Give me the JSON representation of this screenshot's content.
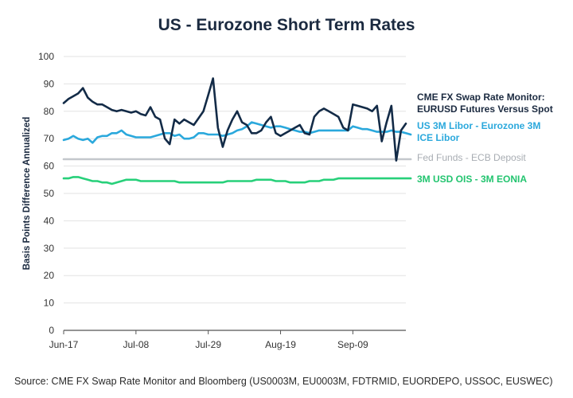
{
  "title": "US - Eurozone Short Term Rates",
  "source": "Source: CME FX Swap Rate Monitor and Bloomberg (US0003M, EU0003M, FDTRMID, EUORDEPO, USSOC, EUSWEC)",
  "chart_data": {
    "type": "line",
    "title": "US - Eurozone Short Term Rates",
    "xlabel": "",
    "ylabel": "Basis Points Difference Annualized",
    "ylim": [
      0,
      100
    ],
    "yticks": [
      0,
      10,
      20,
      30,
      40,
      50,
      60,
      70,
      80,
      90,
      100
    ],
    "xtick_labels": [
      "Jun-17",
      "Jul-08",
      "Jul-29",
      "Aug-19",
      "Sep-09"
    ],
    "xtick_index": [
      0,
      15,
      30,
      45,
      60
    ],
    "grid": "horizontal",
    "legend_position": "right",
    "series": [
      {
        "name": "CME FX Swap Rate Monitor: EURUSD Futures Versus Spot",
        "color": "#132b47",
        "values": [
          83,
          84.5,
          85.5,
          86.5,
          88.5,
          85,
          83.5,
          82.5,
          82.5,
          81.5,
          80.5,
          80,
          80.5,
          80,
          79.5,
          80,
          79,
          78.5,
          81.5,
          78,
          77,
          70,
          68,
          77,
          75.5,
          77,
          76,
          75,
          77.5,
          80,
          86,
          92,
          74,
          67,
          73,
          77,
          80,
          76,
          75,
          72,
          72,
          73,
          76,
          78,
          72,
          71,
          72,
          73,
          74,
          75,
          72,
          71.5,
          78,
          80,
          81,
          80,
          79,
          78,
          74,
          73,
          82.5,
          82,
          81.5,
          81,
          80,
          82,
          69,
          76,
          82,
          62,
          73,
          75.5
        ]
      },
      {
        "name": "US 3M Libor - Eurozone 3M ICE Libor",
        "color": "#2aa8dc",
        "values": [
          69.5,
          70,
          71,
          70,
          69.5,
          70,
          68.5,
          70.5,
          71,
          71,
          72,
          72,
          73,
          71.5,
          71,
          70.5,
          70.5,
          70.5,
          70.5,
          71,
          71.5,
          72,
          72,
          71,
          71.5,
          70,
          70,
          70.5,
          72,
          72,
          71.5,
          71.5,
          71.5,
          71,
          71.5,
          72,
          73,
          73.5,
          74.5,
          76,
          75.5,
          75,
          74.5,
          74,
          74.5,
          74.5,
          74,
          73.5,
          73,
          72.5,
          72.5,
          72,
          72.5,
          73,
          73,
          73,
          73,
          73,
          73,
          73,
          74.5,
          74,
          73.5,
          73.5,
          73,
          72.5,
          72.5,
          72.5,
          73,
          72.5,
          72.5,
          72,
          71.5
        ]
      },
      {
        "name": "Fed Funds - ECB Deposit",
        "color": "#c3c7cc",
        "values": [
          62.5,
          62.5,
          62.5,
          62.5,
          62.5,
          62.5,
          62.5,
          62.5,
          62.5,
          62.5,
          62.5,
          62.5,
          62.5,
          62.5,
          62.5,
          62.5,
          62.5,
          62.5,
          62.5,
          62.5,
          62.5,
          62.5,
          62.5,
          62.5,
          62.5,
          62.5,
          62.5,
          62.5,
          62.5,
          62.5,
          62.5,
          62.5,
          62.5,
          62.5,
          62.5,
          62.5,
          62.5,
          62.5,
          62.5,
          62.5,
          62.5,
          62.5,
          62.5,
          62.5,
          62.5,
          62.5,
          62.5,
          62.5,
          62.5,
          62.5,
          62.5,
          62.5,
          62.5,
          62.5,
          62.5,
          62.5,
          62.5,
          62.5,
          62.5,
          62.5,
          62.5,
          62.5,
          62.5,
          62.5,
          62.5,
          62.5,
          62.5,
          62.5,
          62.5,
          62.5,
          62.5,
          62.5,
          62.5
        ]
      },
      {
        "name": "3M USD OIS - 3M EONIA",
        "color": "#27d07a",
        "values": [
          55.5,
          55.5,
          56,
          56,
          55.5,
          55,
          54.5,
          54.5,
          54,
          54,
          53.5,
          54,
          54.5,
          55,
          55,
          55,
          54.5,
          54.5,
          54.5,
          54.5,
          54.5,
          54.5,
          54.5,
          54.5,
          54,
          54,
          54,
          54,
          54,
          54,
          54,
          54,
          54,
          54,
          54.5,
          54.5,
          54.5,
          54.5,
          54.5,
          54.5,
          55,
          55,
          55,
          55,
          54.5,
          54.5,
          54.5,
          54,
          54,
          54,
          54,
          54.5,
          54.5,
          54.5,
          55,
          55,
          55,
          55.5,
          55.5,
          55.5,
          55.5,
          55.5,
          55.5,
          55.5,
          55.5,
          55.5,
          55.5,
          55.5,
          55.5,
          55.5,
          55.5,
          55.5,
          55.5
        ]
      }
    ]
  }
}
